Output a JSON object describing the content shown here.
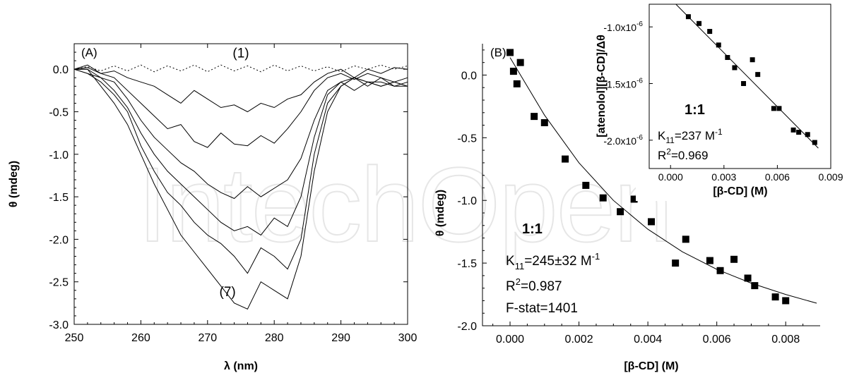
{
  "watermark_text": "IntechOpen",
  "chart_data": [
    {
      "type": "line",
      "panel_label": "(A)",
      "xlabel": "λ (nm)",
      "ylabel": "θ (mdeg)",
      "xlim": [
        250,
        300
      ],
      "ylim": [
        -3.0,
        0.3
      ],
      "xticks": [
        250,
        260,
        270,
        280,
        290,
        300
      ],
      "yticks": [
        0.0,
        -0.5,
        -1.0,
        -1.5,
        -2.0,
        -2.5,
        -3.0
      ],
      "xtick_labels": [
        "250",
        "260",
        "270",
        "280",
        "290",
        "300"
      ],
      "ytick_labels": [
        "0.0",
        "-0.5",
        "-1.0",
        "-1.5",
        "-2.0",
        "-2.5",
        "-3.0"
      ],
      "curve_labels": [
        {
          "text": "(1)",
          "x": 275,
          "y": 0.14
        },
        {
          "text": "(7)",
          "x": 273,
          "y": -2.67
        }
      ],
      "series": [
        {
          "style": "dotted",
          "x": [
            250,
            252,
            254,
            256,
            258,
            260,
            262,
            264,
            266,
            268,
            270,
            272,
            274,
            276,
            278,
            280,
            282,
            284,
            286,
            288,
            290,
            292,
            294,
            296,
            298,
            300
          ],
          "y": [
            0.0,
            0.03,
            -0.02,
            0.04,
            -0.02,
            0.05,
            -0.03,
            0.04,
            -0.02,
            0.05,
            -0.03,
            0.05,
            -0.02,
            0.04,
            -0.03,
            0.05,
            -0.02,
            0.04,
            -0.02,
            0.03,
            -0.03,
            0.04,
            0.0,
            0.05,
            0.0,
            0.04
          ]
        },
        {
          "style": "solid",
          "x": [
            250,
            252,
            254,
            256,
            258,
            260,
            262,
            264,
            266,
            268,
            270,
            272,
            274,
            276,
            278,
            280,
            282,
            284,
            286,
            288,
            290,
            292,
            294,
            296,
            298,
            300
          ],
          "y": [
            0.0,
            0.02,
            -0.05,
            -0.02,
            -0.1,
            -0.15,
            -0.2,
            -0.3,
            -0.4,
            -0.25,
            -0.35,
            -0.45,
            -0.42,
            -0.5,
            -0.4,
            -0.45,
            -0.35,
            -0.3,
            -0.15,
            -0.05,
            0.0,
            -0.1,
            0.0,
            -0.05,
            0.02,
            0.0
          ]
        },
        {
          "style": "solid",
          "x": [
            250,
            252,
            254,
            256,
            258,
            260,
            262,
            264,
            266,
            268,
            270,
            272,
            274,
            276,
            278,
            280,
            282,
            284,
            286,
            288,
            290,
            292,
            294,
            296,
            298,
            300
          ],
          "y": [
            0.0,
            0.05,
            -0.05,
            -0.1,
            -0.25,
            -0.4,
            -0.55,
            -0.7,
            -0.65,
            -0.85,
            -0.92,
            -0.75,
            -0.88,
            -0.9,
            -0.78,
            -0.87,
            -0.7,
            -0.5,
            -0.25,
            -0.1,
            -0.05,
            -0.12,
            -0.05,
            -0.1,
            -0.15,
            -0.1
          ]
        },
        {
          "style": "solid",
          "x": [
            250,
            252,
            254,
            256,
            258,
            260,
            262,
            264,
            266,
            268,
            270,
            272,
            274,
            276,
            278,
            280,
            282,
            284,
            286,
            288,
            290,
            292,
            294,
            296,
            298,
            300
          ],
          "y": [
            0.0,
            0.0,
            -0.1,
            -0.15,
            -0.35,
            -0.6,
            -0.8,
            -0.95,
            -1.1,
            -1.2,
            -1.35,
            -1.45,
            -1.52,
            -1.38,
            -1.5,
            -1.4,
            -1.3,
            -1.05,
            -0.6,
            -0.25,
            -0.15,
            -0.1,
            -0.15,
            -0.2,
            -0.15,
            -0.2
          ]
        },
        {
          "style": "solid",
          "x": [
            250,
            252,
            254,
            256,
            258,
            260,
            262,
            264,
            266,
            268,
            270,
            272,
            274,
            276,
            278,
            280,
            282,
            284,
            286,
            288,
            290,
            292,
            294,
            296,
            298,
            300
          ],
          "y": [
            0.0,
            -0.05,
            -0.1,
            -0.25,
            -0.45,
            -0.75,
            -1.0,
            -1.2,
            -1.35,
            -1.5,
            -1.65,
            -1.8,
            -1.9,
            -1.85,
            -1.95,
            -1.75,
            -1.85,
            -1.5,
            -0.8,
            -0.3,
            -0.15,
            -0.25,
            -0.15,
            -0.2,
            -0.15,
            -0.2
          ]
        },
        {
          "style": "solid",
          "x": [
            250,
            252,
            254,
            256,
            258,
            260,
            262,
            264,
            266,
            268,
            270,
            272,
            274,
            276,
            278,
            280,
            282,
            284,
            286,
            288,
            290,
            292,
            294,
            296,
            298,
            300
          ],
          "y": [
            0.0,
            -0.05,
            -0.15,
            -0.3,
            -0.5,
            -0.9,
            -1.2,
            -1.45,
            -1.6,
            -1.8,
            -1.95,
            -2.05,
            -2.2,
            -2.4,
            -2.1,
            -2.2,
            -2.35,
            -2.0,
            -1.0,
            -0.4,
            -0.2,
            -0.1,
            -0.2,
            -0.1,
            -0.2,
            -0.15
          ]
        },
        {
          "style": "solid",
          "x": [
            250,
            252,
            254,
            256,
            258,
            260,
            262,
            264,
            266,
            268,
            270,
            272,
            274,
            276,
            278,
            280,
            282,
            284,
            286,
            288,
            290,
            292,
            294,
            296,
            298,
            300
          ],
          "y": [
            0.0,
            0.0,
            -0.2,
            -0.4,
            -0.65,
            -1.0,
            -1.35,
            -1.65,
            -1.95,
            -2.15,
            -2.35,
            -2.55,
            -2.75,
            -2.82,
            -2.5,
            -2.6,
            -2.7,
            -2.2,
            -1.2,
            -0.5,
            -0.2,
            -0.1,
            -0.15,
            -0.15,
            -0.2,
            -0.2
          ]
        }
      ]
    },
    {
      "type": "scatter",
      "panel_label": "(B)",
      "xlabel": "[β-CD] (M)",
      "ylabel": "θ (mdeg)",
      "xlim": [
        -0.0008,
        0.009
      ],
      "ylim": [
        -2.0,
        0.25
      ],
      "xticks": [
        0.0,
        0.002,
        0.004,
        0.006,
        0.008
      ],
      "yticks": [
        0.0,
        -0.5,
        -1.0,
        -1.5,
        -2.0
      ],
      "xtick_labels": [
        "0.000",
        "0.002",
        "0.004",
        "0.006",
        "0.008"
      ],
      "ytick_labels": [
        "0.0",
        "-0.5",
        "-1.0",
        "-1.5",
        "-2.0"
      ],
      "points": [
        {
          "x": 0.0,
          "y": 0.18
        },
        {
          "x": 0.0001,
          "y": 0.03
        },
        {
          "x": 0.0002,
          "y": -0.07
        },
        {
          "x": 0.0003,
          "y": 0.1
        },
        {
          "x": 0.0007,
          "y": -0.33
        },
        {
          "x": 0.001,
          "y": -0.38
        },
        {
          "x": 0.0016,
          "y": -0.67
        },
        {
          "x": 0.0022,
          "y": -0.88
        },
        {
          "x": 0.0027,
          "y": -0.98
        },
        {
          "x": 0.0032,
          "y": -1.09
        },
        {
          "x": 0.0036,
          "y": -0.99
        },
        {
          "x": 0.0041,
          "y": -1.17
        },
        {
          "x": 0.0048,
          "y": -1.5
        },
        {
          "x": 0.0051,
          "y": -1.31
        },
        {
          "x": 0.0058,
          "y": -1.48
        },
        {
          "x": 0.0061,
          "y": -1.56
        },
        {
          "x": 0.0065,
          "y": -1.47
        },
        {
          "x": 0.0069,
          "y": -1.62
        },
        {
          "x": 0.0071,
          "y": -1.68
        },
        {
          "x": 0.0077,
          "y": -1.77
        },
        {
          "x": 0.008,
          "y": -1.8
        }
      ],
      "fit": {
        "x": [
          0.0,
          0.001,
          0.002,
          0.003,
          0.004,
          0.005,
          0.006,
          0.007,
          0.008,
          0.0089
        ],
        "y": [
          0.14,
          -0.32,
          -0.7,
          -1.0,
          -1.23,
          -1.41,
          -1.55,
          -1.66,
          -1.75,
          -1.82
        ]
      },
      "annotations": {
        "ratio": "1:1",
        "k_main": "K",
        "k_sub": "11",
        "k_value": "=245±32 M",
        "k_sup": "-1",
        "r_main": "R",
        "r_sup": "2",
        "r_value": "=0.987",
        "fstat": "F-stat=1401"
      }
    },
    {
      "type": "scatter",
      "panel_label": "",
      "xlabel": "[β-CD] (M)",
      "ylabel": "[atenolol][β-CD]/Δθ",
      "xlim": [
        -0.0012,
        0.009
      ],
      "ylim": [
        -2.25e-06,
        -8e-07
      ],
      "xticks": [
        0.0,
        0.003,
        0.006,
        0.009
      ],
      "yticks": [
        -1e-06,
        -1.5e-06,
        -2e-06
      ],
      "xtick_labels": [
        "0.000",
        "0.003",
        "0.006",
        "0.009"
      ],
      "ytick_labels": [
        {
          "base": "-1.0x10",
          "exp": "-6"
        },
        {
          "base": "-1.5x10",
          "exp": "-6"
        },
        {
          "base": "-2.0x10",
          "exp": "-6"
        }
      ],
      "points": [
        {
          "x": 0.001,
          "y": -9.1e-07
        },
        {
          "x": 0.0016,
          "y": -9.7e-07
        },
        {
          "x": 0.0022,
          "y": -1.04e-06
        },
        {
          "x": 0.0027,
          "y": -1.16e-06
        },
        {
          "x": 0.0032,
          "y": -1.27e-06
        },
        {
          "x": 0.0036,
          "y": -1.36e-06
        },
        {
          "x": 0.0041,
          "y": -1.5e-06
        },
        {
          "x": 0.0046,
          "y": -1.29e-06
        },
        {
          "x": 0.0049,
          "y": -1.42e-06
        },
        {
          "x": 0.0058,
          "y": -1.72e-06
        },
        {
          "x": 0.0061,
          "y": -1.72e-06
        },
        {
          "x": 0.0069,
          "y": -1.91e-06
        },
        {
          "x": 0.0072,
          "y": -1.93e-06
        },
        {
          "x": 0.0077,
          "y": -1.95e-06
        },
        {
          "x": 0.0081,
          "y": -2.02e-06
        }
      ],
      "fit": {
        "x": [
          0.0003,
          0.0083
        ],
        "y": [
          -8e-07,
          -2.07e-06
        ]
      },
      "annotations": {
        "ratio": "1:1",
        "k_main": "K",
        "k_sub": "11",
        "k_value": "=237 M",
        "k_sup": "-1",
        "r_main": "R",
        "r_sup": "2",
        "r_value": "=0.969"
      }
    }
  ]
}
